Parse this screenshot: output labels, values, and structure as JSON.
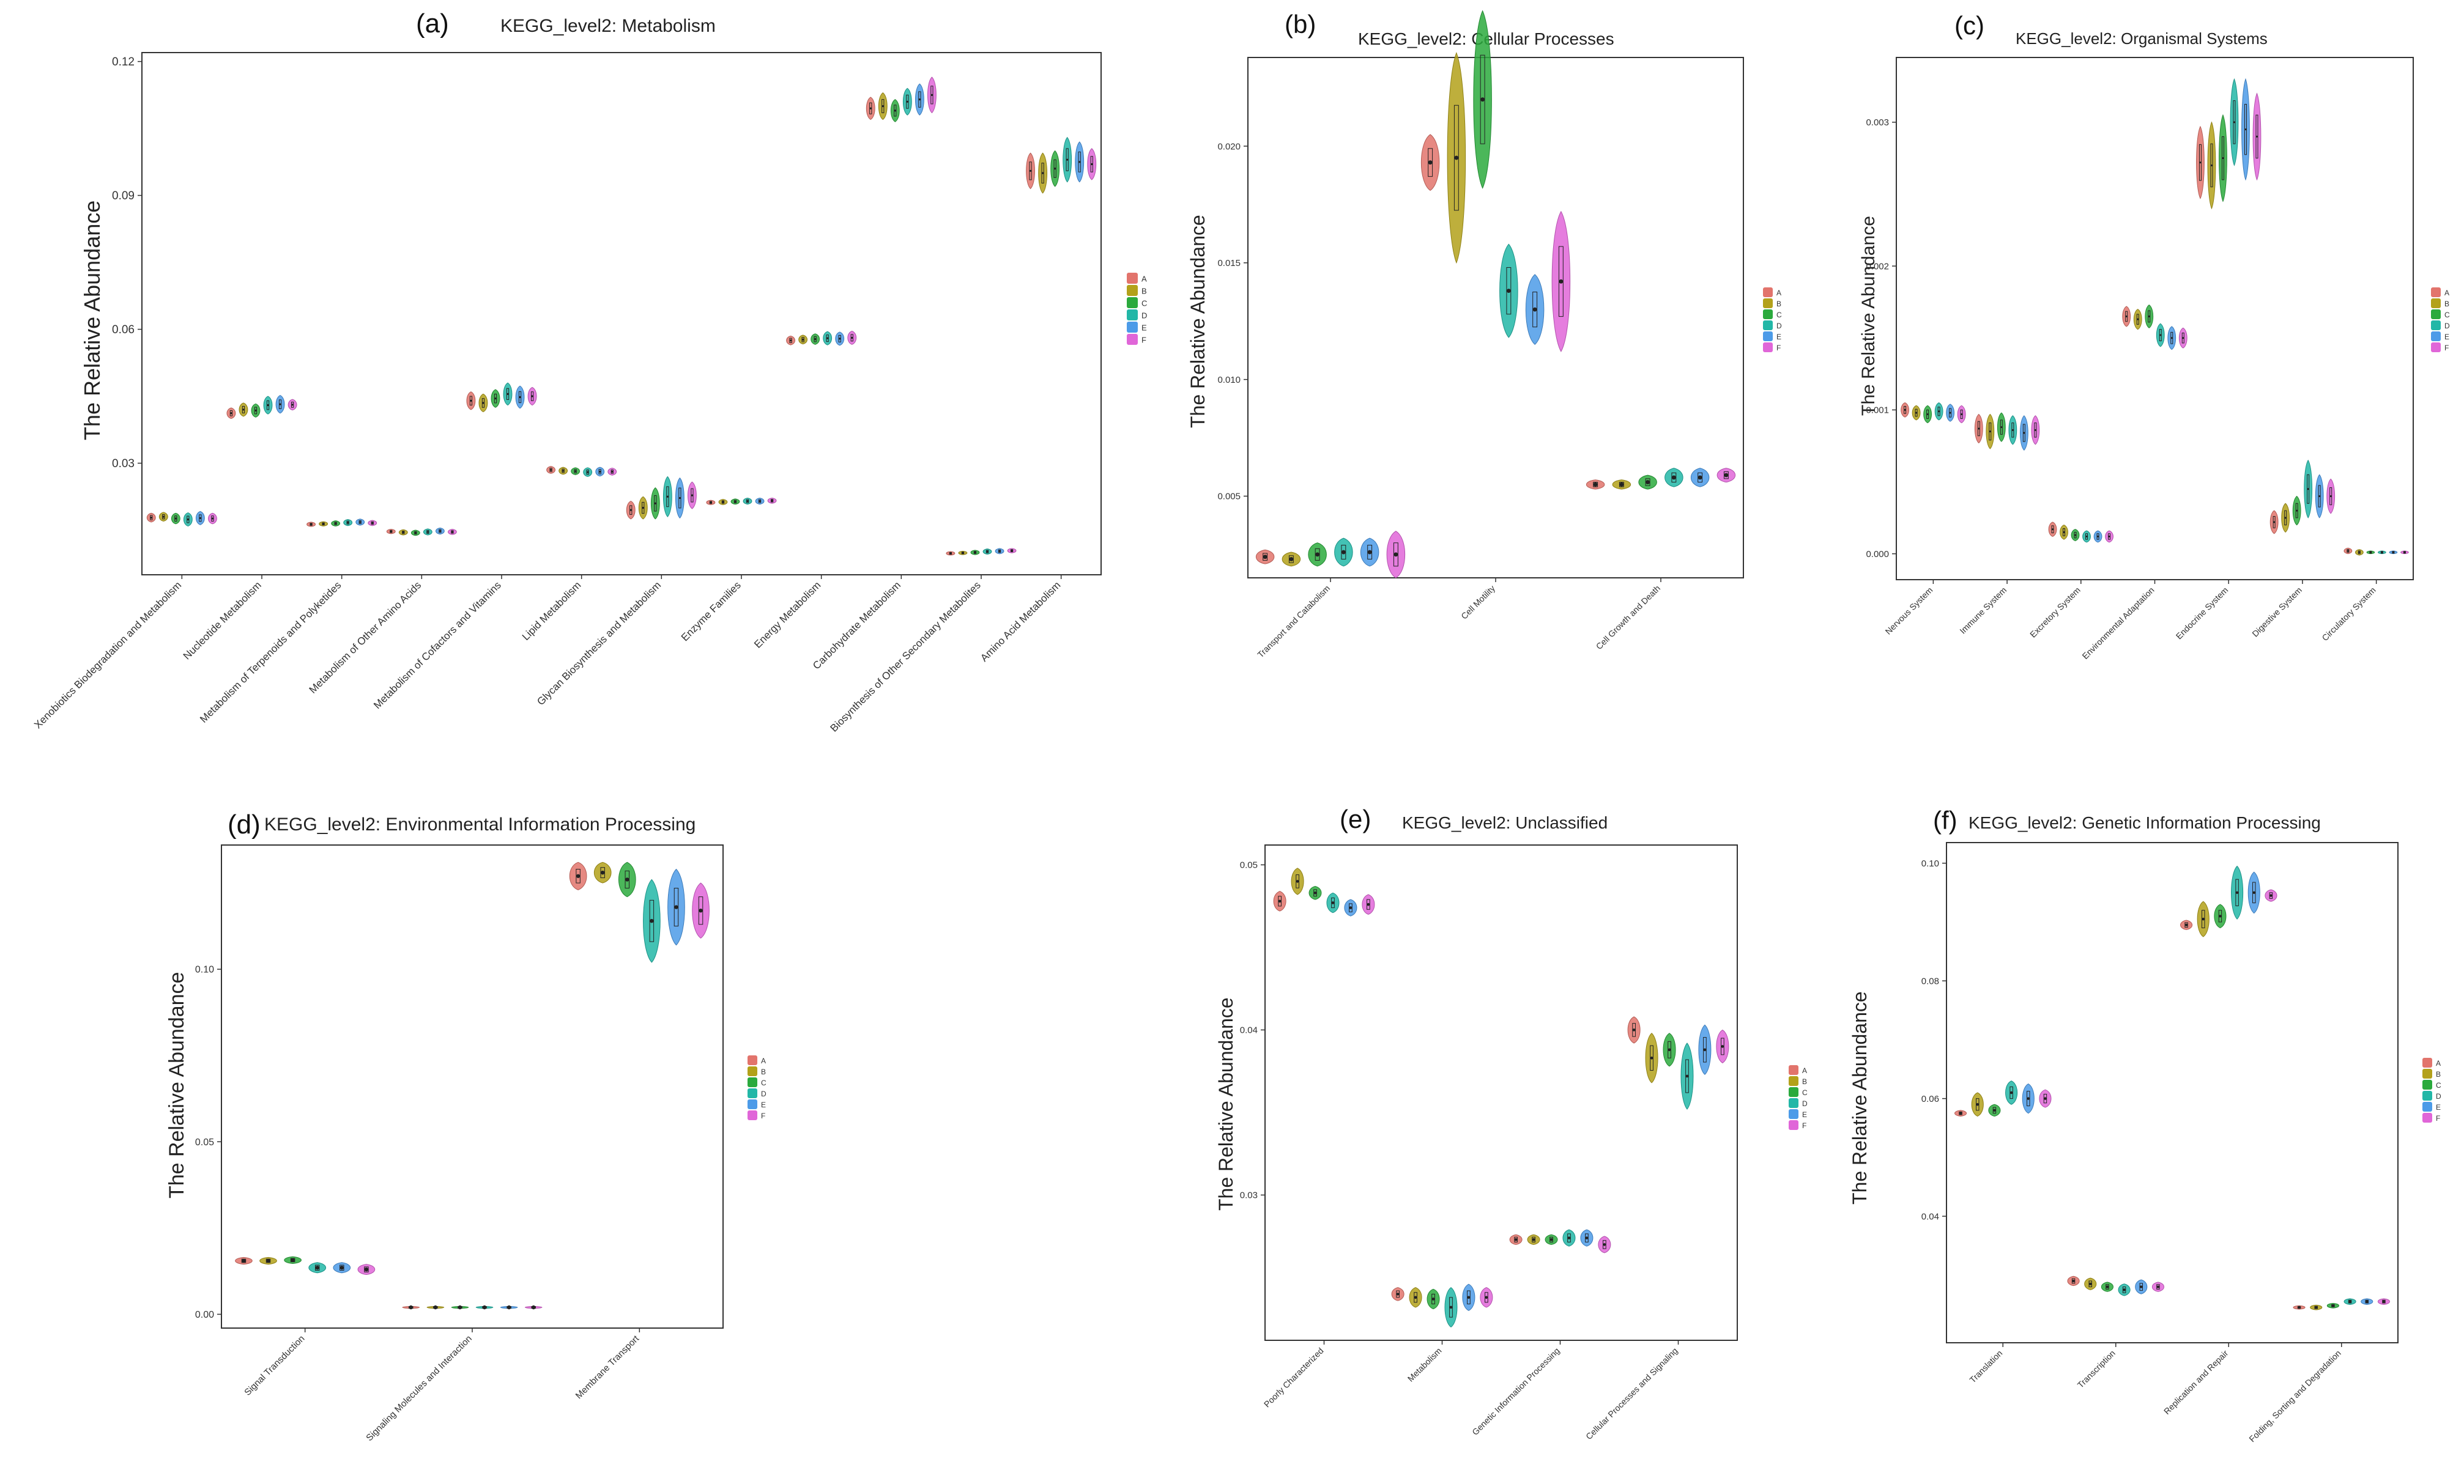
{
  "colors": {
    "A": "#E2746C",
    "B": "#B3A11A",
    "C": "#2BAA3D",
    "D": "#22B7A7",
    "E": "#4C9BE8",
    "F": "#E066D8"
  },
  "chart_data": [
    {
      "type": "violin",
      "tag": "(a)",
      "title": "KEGG_level2: Metabolism",
      "ylabel": "The Relative Abundance",
      "xlabel": "",
      "ylim": [
        0.005,
        0.122
      ],
      "yticks": [
        0.03,
        0.06,
        0.09,
        0.12
      ],
      "ytick_labels": [
        "0.03",
        "0.06",
        "0.09",
        "0.12"
      ],
      "legend": [
        "A",
        "B",
        "C",
        "D",
        "E",
        "F"
      ],
      "categories": [
        "Xenobiotics Biodegradation and Metabolism",
        "Nucleotide Metabolism",
        "Metabolism of Terpenoids and Polyketides",
        "Metabolism of Other Amino Acids",
        "Metabolism of Cofactors and Vitamins",
        "Lipid Metabolism",
        "Glycan Biosynthesis and Metabolism",
        "Enzyme Families",
        "Energy Metabolism",
        "Carbohydrate Metabolism",
        "Biosynthesis of Other Secondary Metabolites",
        "Amino Acid Metabolism"
      ],
      "medians": [
        [
          0.0178,
          0.018,
          0.0176,
          0.0174,
          0.0177,
          0.0176
        ],
        [
          0.0412,
          0.042,
          0.0418,
          0.043,
          0.0432,
          0.0431
        ],
        [
          0.0163,
          0.0164,
          0.0165,
          0.0167,
          0.0168,
          0.0166
        ],
        [
          0.0147,
          0.0145,
          0.0144,
          0.0146,
          0.0148,
          0.0146
        ],
        [
          0.044,
          0.0435,
          0.0445,
          0.0455,
          0.0448,
          0.045
        ],
        [
          0.0285,
          0.0283,
          0.0282,
          0.028,
          0.0281,
          0.0281
        ],
        [
          0.0195,
          0.02,
          0.021,
          0.0225,
          0.0222,
          0.0228
        ],
        [
          0.0212,
          0.0213,
          0.0214,
          0.0215,
          0.0215,
          0.0216
        ],
        [
          0.0575,
          0.0577,
          0.0578,
          0.058,
          0.0579,
          0.0581
        ],
        [
          0.1095,
          0.11,
          0.109,
          0.111,
          0.1115,
          0.1125
        ],
        [
          0.0098,
          0.0099,
          0.01,
          0.0102,
          0.0103,
          0.0104
        ],
        [
          0.0955,
          0.095,
          0.096,
          0.098,
          0.0975,
          0.097
        ]
      ],
      "spreads": [
        [
          0.001,
          0.001,
          0.0012,
          0.0015,
          0.0015,
          0.0012
        ],
        [
          0.0012,
          0.0015,
          0.0015,
          0.002,
          0.002,
          0.0012
        ],
        [
          0.0005,
          0.0005,
          0.0006,
          0.0007,
          0.0007,
          0.0006
        ],
        [
          0.0005,
          0.0006,
          0.0006,
          0.0007,
          0.0007,
          0.0006
        ],
        [
          0.002,
          0.002,
          0.002,
          0.0025,
          0.0025,
          0.002
        ],
        [
          0.0008,
          0.0008,
          0.0008,
          0.001,
          0.001,
          0.0008
        ],
        [
          0.002,
          0.0025,
          0.0035,
          0.0045,
          0.0045,
          0.003
        ],
        [
          0.0005,
          0.0006,
          0.0006,
          0.0007,
          0.0007,
          0.0006
        ],
        [
          0.001,
          0.001,
          0.0012,
          0.0015,
          0.0015,
          0.0015
        ],
        [
          0.0025,
          0.003,
          0.0025,
          0.003,
          0.0035,
          0.004
        ],
        [
          0.0004,
          0.0004,
          0.0005,
          0.0006,
          0.0006,
          0.0005
        ],
        [
          0.004,
          0.0045,
          0.004,
          0.005,
          0.0045,
          0.0035
        ]
      ]
    },
    {
      "type": "violin",
      "tag": "(b)",
      "title": "KEGG_level2: Cellular Processes",
      "ylabel": "The Relative Abundance",
      "xlabel": "",
      "ylim": [
        0.0015,
        0.0238
      ],
      "yticks": [
        0.005,
        0.01,
        0.015,
        0.02
      ],
      "ytick_labels": [
        "0.005",
        "0.010",
        "0.015",
        "0.020"
      ],
      "legend": [
        "A",
        "B",
        "C",
        "D",
        "E",
        "F"
      ],
      "categories": [
        "Transport and Catabolism",
        "Cell Motility",
        "Cell Growth and Death"
      ],
      "medians": [
        [
          0.0024,
          0.0023,
          0.0025,
          0.0026,
          0.0026,
          0.0025
        ],
        [
          0.0193,
          0.0195,
          0.022,
          0.0138,
          0.013,
          0.0142
        ],
        [
          0.0055,
          0.0055,
          0.0056,
          0.0058,
          0.0058,
          0.0059
        ]
      ],
      "spreads": [
        [
          0.0003,
          0.0003,
          0.0005,
          0.0006,
          0.0006,
          0.001
        ],
        [
          0.0012,
          0.0045,
          0.0038,
          0.002,
          0.0015,
          0.003
        ],
        [
          0.0002,
          0.0002,
          0.0003,
          0.0004,
          0.0004,
          0.0003
        ]
      ]
    },
    {
      "type": "violin",
      "tag": "(c)",
      "title": "KEGG_level2: Organismal Systems",
      "ylabel": "The Relative Abundance",
      "xlabel": "",
      "ylim": [
        -0.00018,
        0.00345
      ],
      "yticks": [
        0.0,
        0.001,
        0.002,
        0.003
      ],
      "ytick_labels": [
        "0.000",
        "0.001",
        "0.002",
        "0.003"
      ],
      "legend": [
        "A",
        "B",
        "C",
        "D",
        "E",
        "F"
      ],
      "categories": [
        "Nervous System",
        "Immune System",
        "Excretory System",
        "Environmental Adaptation",
        "Endocrine System",
        "Digestive System",
        "Circulatory System"
      ],
      "medians": [
        [
          0.001,
          0.00098,
          0.00097,
          0.00099,
          0.00098,
          0.00097
        ],
        [
          0.00087,
          0.00085,
          0.00088,
          0.00086,
          0.00084,
          0.00086
        ],
        [
          0.00017,
          0.00015,
          0.00013,
          0.00012,
          0.00012,
          0.00012
        ],
        [
          0.00165,
          0.00163,
          0.00165,
          0.00152,
          0.0015,
          0.0015
        ],
        [
          0.00272,
          0.0027,
          0.00275,
          0.003,
          0.00295,
          0.0029
        ],
        [
          0.00022,
          0.00025,
          0.0003,
          0.00045,
          0.0004,
          0.0004
        ],
        [
          2e-05,
          1e-05,
          1e-05,
          1e-05,
          1e-05,
          1e-05
        ]
      ],
      "spreads": [
        [
          5e-05,
          5e-05,
          6e-05,
          6e-05,
          6e-05,
          6e-05
        ],
        [
          0.0001,
          0.00012,
          0.0001,
          0.0001,
          0.00012,
          0.0001
        ],
        [
          5e-05,
          5e-05,
          4e-05,
          4e-05,
          4e-05,
          4e-05
        ],
        [
          7e-05,
          7e-05,
          8e-05,
          8e-05,
          8e-05,
          7e-05
        ],
        [
          0.00025,
          0.0003,
          0.0003,
          0.0003,
          0.00035,
          0.0003
        ],
        [
          8e-05,
          0.0001,
          0.0001,
          0.0002,
          0.00015,
          0.00012
        ],
        [
          2e-05,
          2e-05,
          1e-05,
          1e-05,
          1e-05,
          1e-05
        ]
      ]
    },
    {
      "type": "violin",
      "tag": "(d)",
      "title": "KEGG_level2: Environmental Information Processing",
      "ylabel": "The Relative Abundance",
      "xlabel": "",
      "ylim": [
        -0.004,
        0.136
      ],
      "yticks": [
        0.0,
        0.05,
        0.1
      ],
      "ytick_labels": [
        "0.00",
        "0.05",
        "0.10"
      ],
      "legend": [
        "A",
        "B",
        "C",
        "D",
        "E",
        "F"
      ],
      "categories": [
        "Signal Transduction",
        "Signaling Molecules and Interaction",
        "Membrane Transport"
      ],
      "medians": [
        [
          0.0155,
          0.0155,
          0.0157,
          0.0135,
          0.0135,
          0.013
        ],
        [
          0.002,
          0.002,
          0.002,
          0.002,
          0.002,
          0.002
        ],
        [
          0.127,
          0.128,
          0.126,
          0.114,
          0.118,
          0.117
        ]
      ],
      "spreads": [
        [
          0.001,
          0.001,
          0.001,
          0.0015,
          0.0015,
          0.0015
        ],
        [
          0.0003,
          0.0003,
          0.0003,
          0.0003,
          0.0003,
          0.0003
        ],
        [
          0.004,
          0.003,
          0.005,
          0.012,
          0.011,
          0.008
        ]
      ]
    },
    {
      "type": "violin",
      "tag": "(e)",
      "title": "KEGG_level2: Unclassified",
      "ylabel": "The Relative Abundance",
      "xlabel": "",
      "ylim": [
        0.0212,
        0.0512
      ],
      "yticks": [
        0.03,
        0.04,
        0.05
      ],
      "ytick_labels": [
        "0.03",
        "0.04",
        "0.05"
      ],
      "legend": [
        "A",
        "B",
        "C",
        "D",
        "E",
        "F"
      ],
      "categories": [
        "Poorly Characterized",
        "Metabolism",
        "Genetic Information Processing",
        "Cellular Processes and Signaling"
      ],
      "medians": [
        [
          0.0478,
          0.049,
          0.0483,
          0.0477,
          0.0474,
          0.0476
        ],
        [
          0.024,
          0.0238,
          0.0237,
          0.0232,
          0.0238,
          0.0238
        ],
        [
          0.0273,
          0.0273,
          0.0273,
          0.0274,
          0.0274,
          0.027
        ],
        [
          0.04,
          0.0383,
          0.0388,
          0.0372,
          0.0388,
          0.039
        ]
      ],
      "spreads": [
        [
          0.0006,
          0.0008,
          0.0004,
          0.0006,
          0.0005,
          0.0006
        ],
        [
          0.0004,
          0.0006,
          0.0006,
          0.0012,
          0.0008,
          0.0006
        ],
        [
          0.0003,
          0.0003,
          0.0003,
          0.0005,
          0.0005,
          0.0005
        ],
        [
          0.0008,
          0.0015,
          0.001,
          0.002,
          0.0015,
          0.001
        ]
      ]
    },
    {
      "type": "violin",
      "tag": "(f)",
      "title": "KEGG_level2: Genetic Information Processing",
      "ylabel": "The Relative Abundance",
      "xlabel": "",
      "ylim": [
        0.0185,
        0.1035
      ],
      "yticks": [
        0.04,
        0.06,
        0.08,
        0.1
      ],
      "ytick_labels": [
        "0.04",
        "0.06",
        "0.08",
        "0.10"
      ],
      "legend": [
        "A",
        "B",
        "C",
        "D",
        "E",
        "F"
      ],
      "categories": [
        "Translation",
        "Transcription",
        "Replication and Repair",
        "Folding, Sorting and Degradation"
      ],
      "medians": [
        [
          0.0575,
          0.059,
          0.058,
          0.061,
          0.06,
          0.06
        ],
        [
          0.029,
          0.0285,
          0.028,
          0.0275,
          0.028,
          0.028
        ],
        [
          0.0895,
          0.0905,
          0.091,
          0.095,
          0.095,
          0.0945
        ],
        [
          0.0245,
          0.0245,
          0.0248,
          0.0255,
          0.0255,
          0.0255
        ]
      ],
      "spreads": [
        [
          0.0005,
          0.002,
          0.001,
          0.002,
          0.0025,
          0.0015
        ],
        [
          0.0008,
          0.001,
          0.0008,
          0.001,
          0.0012,
          0.0008
        ],
        [
          0.0008,
          0.003,
          0.002,
          0.0045,
          0.0035,
          0.001
        ],
        [
          0.0003,
          0.0004,
          0.0004,
          0.0005,
          0.0005,
          0.0005
        ]
      ]
    }
  ]
}
